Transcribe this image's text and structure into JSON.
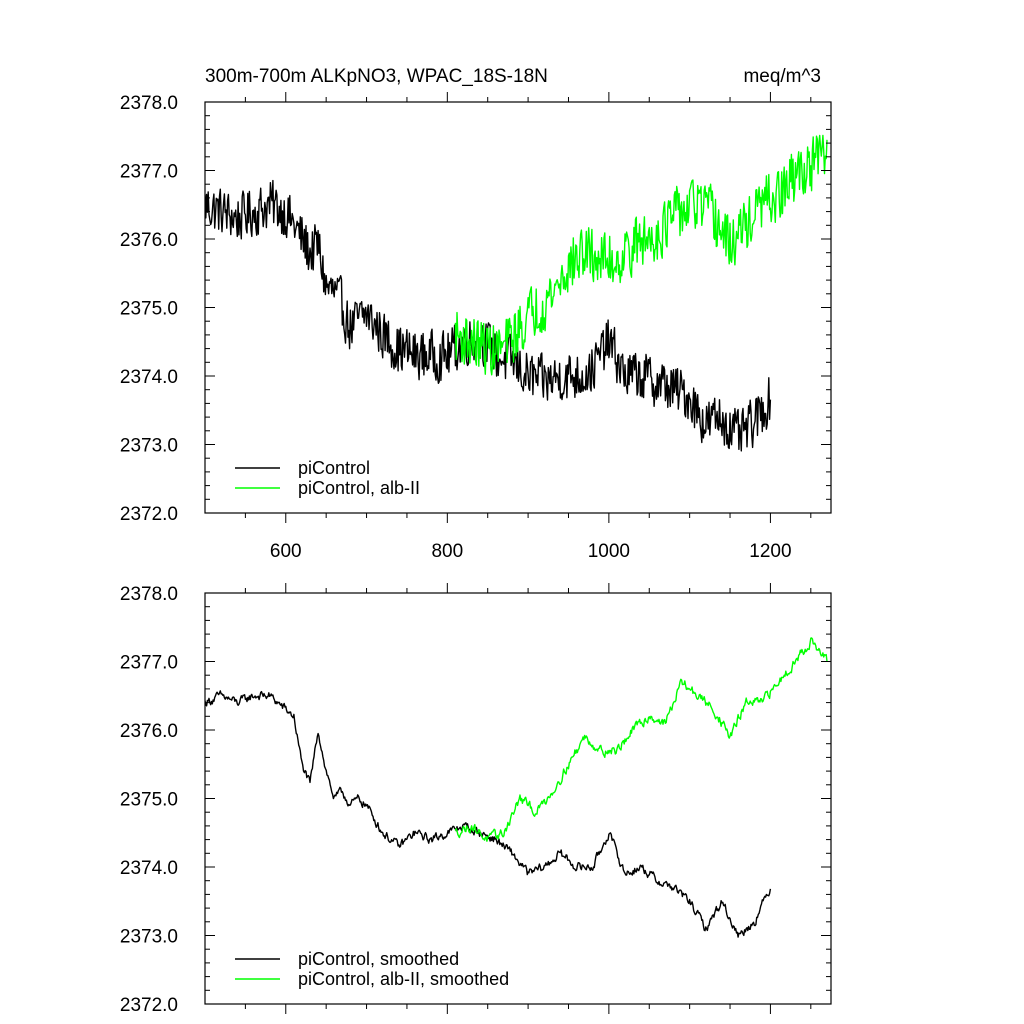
{
  "chart_data": [
    {
      "type": "line",
      "title": "300m-700m ALKpNO3, WPAC_18S-18N",
      "units": "meq/m^3",
      "xlabel": "",
      "ylabel": "",
      "xlim": [
        500,
        1275
      ],
      "ylim": [
        2372.0,
        2378.0
      ],
      "xticks": [
        600,
        800,
        1000,
        1200
      ],
      "xtick_labels": [
        "600",
        "800",
        "1000",
        "1200"
      ],
      "yticks": [
        2372,
        2373,
        2374,
        2375,
        2376,
        2377,
        2378
      ],
      "ytick_labels": [
        "2372.0",
        "2373.0",
        "2374.0",
        "2375.0",
        "2376.0",
        "2377.0",
        "2378.0"
      ],
      "grid": false,
      "legend_position": "bottom-left",
      "series": [
        {
          "name": "piControl",
          "color": "#000000",
          "x": [
            500,
            520,
            540,
            560,
            580,
            600,
            610,
            620,
            630,
            640,
            650,
            660,
            670,
            680,
            690,
            700,
            720,
            740,
            760,
            780,
            800,
            820,
            840,
            860,
            880,
            900,
            920,
            940,
            960,
            980,
            1000,
            1020,
            1040,
            1060,
            1080,
            1100,
            1120,
            1140,
            1160,
            1180,
            1200
          ],
          "y": [
            2376.5,
            2376.4,
            2376.3,
            2376.4,
            2376.5,
            2376.4,
            2376.2,
            2376.0,
            2375.8,
            2375.9,
            2375.3,
            2375.2,
            2375.0,
            2374.7,
            2374.8,
            2374.9,
            2374.6,
            2374.4,
            2374.3,
            2374.3,
            2374.3,
            2374.5,
            2374.6,
            2374.3,
            2374.2,
            2374.0,
            2373.9,
            2374.0,
            2374.0,
            2374.1,
            2374.5,
            2374.0,
            2374.0,
            2373.9,
            2373.8,
            2373.7,
            2373.3,
            2373.4,
            2373.1,
            2373.3,
            2373.7
          ],
          "noise": 0.45
        },
        {
          "name": "piControl, alb-II",
          "color": "#00ff00",
          "x": [
            810,
            830,
            850,
            870,
            890,
            910,
            930,
            950,
            970,
            990,
            1010,
            1030,
            1050,
            1070,
            1090,
            1110,
            1130,
            1150,
            1170,
            1190,
            1210,
            1230,
            1250,
            1270
          ],
          "y": [
            2374.6,
            2374.5,
            2374.4,
            2374.4,
            2374.7,
            2375.0,
            2375.2,
            2375.6,
            2375.8,
            2375.7,
            2375.7,
            2375.9,
            2376.0,
            2376.2,
            2376.4,
            2376.5,
            2376.3,
            2375.9,
            2376.2,
            2376.5,
            2376.6,
            2376.9,
            2377.1,
            2377.2
          ],
          "noise": 0.5
        }
      ]
    },
    {
      "type": "line",
      "title": "",
      "xlim": [
        500,
        1275
      ],
      "ylim": [
        2372.0,
        2378.0
      ],
      "yticks": [
        2372,
        2373,
        2374,
        2375,
        2376,
        2377,
        2378
      ],
      "ytick_labels": [
        "2372.0",
        "2373.0",
        "2374.0",
        "2375.0",
        "2376.0",
        "2377.0",
        "2378.0"
      ],
      "grid": false,
      "legend_position": "bottom-left",
      "series": [
        {
          "name": "piControl, smoothed",
          "color": "#000000",
          "x": [
            500,
            520,
            540,
            560,
            580,
            600,
            610,
            620,
            630,
            640,
            650,
            660,
            670,
            680,
            690,
            700,
            720,
            740,
            760,
            780,
            800,
            820,
            840,
            860,
            880,
            900,
            920,
            940,
            960,
            980,
            1000,
            1020,
            1040,
            1060,
            1080,
            1100,
            1120,
            1140,
            1160,
            1180,
            1200
          ],
          "y": [
            2376.4,
            2376.5,
            2376.4,
            2376.5,
            2376.5,
            2376.3,
            2376.2,
            2375.5,
            2375.2,
            2376.0,
            2375.4,
            2375.0,
            2375.1,
            2374.9,
            2375.0,
            2374.9,
            2374.5,
            2374.3,
            2374.5,
            2374.4,
            2374.5,
            2374.6,
            2374.5,
            2374.4,
            2374.2,
            2373.9,
            2374.0,
            2374.2,
            2374.0,
            2374.0,
            2374.5,
            2373.9,
            2374.0,
            2373.8,
            2373.7,
            2373.5,
            2373.1,
            2373.5,
            2373.0,
            2373.2,
            2373.7
          ],
          "noise": 0.12
        },
        {
          "name": "piControl, alb-II, smoothed",
          "color": "#00ff00",
          "x": [
            810,
            830,
            850,
            870,
            890,
            910,
            930,
            950,
            970,
            990,
            1010,
            1030,
            1050,
            1070,
            1090,
            1110,
            1130,
            1150,
            1170,
            1190,
            1210,
            1230,
            1250,
            1270
          ],
          "y": [
            2374.5,
            2374.6,
            2374.4,
            2374.5,
            2375.0,
            2374.8,
            2375.1,
            2375.5,
            2375.9,
            2375.7,
            2375.7,
            2376.0,
            2376.2,
            2376.1,
            2376.7,
            2376.5,
            2376.3,
            2375.9,
            2376.4,
            2376.4,
            2376.7,
            2377.0,
            2377.3,
            2377.0
          ],
          "noise": 0.13
        }
      ]
    }
  ]
}
